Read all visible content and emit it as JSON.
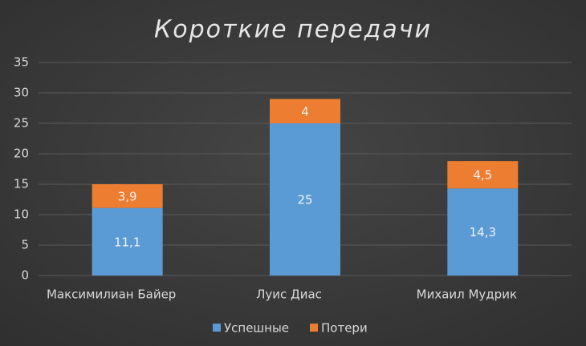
{
  "chart_data": {
    "type": "stacked_bar",
    "title": "Короткие передачи",
    "categories": [
      "Максимилиан Байер",
      "Луис Диас",
      "Михаил Мудрик"
    ],
    "series": [
      {
        "name": "Успешные",
        "color": "#5b9bd5",
        "values": [
          11.1,
          25,
          14.3
        ],
        "value_labels": [
          "11,1",
          "25",
          "14,3"
        ]
      },
      {
        "name": "Потери",
        "color": "#ed7d31",
        "values": [
          3.9,
          4,
          4.5
        ],
        "value_labels": [
          "3,9",
          "4",
          "4,5"
        ]
      }
    ],
    "ylim": [
      0,
      35
    ],
    "yticks": [
      0,
      5,
      10,
      15,
      20,
      25,
      30,
      35
    ],
    "grid": true,
    "legend": "bottom"
  }
}
